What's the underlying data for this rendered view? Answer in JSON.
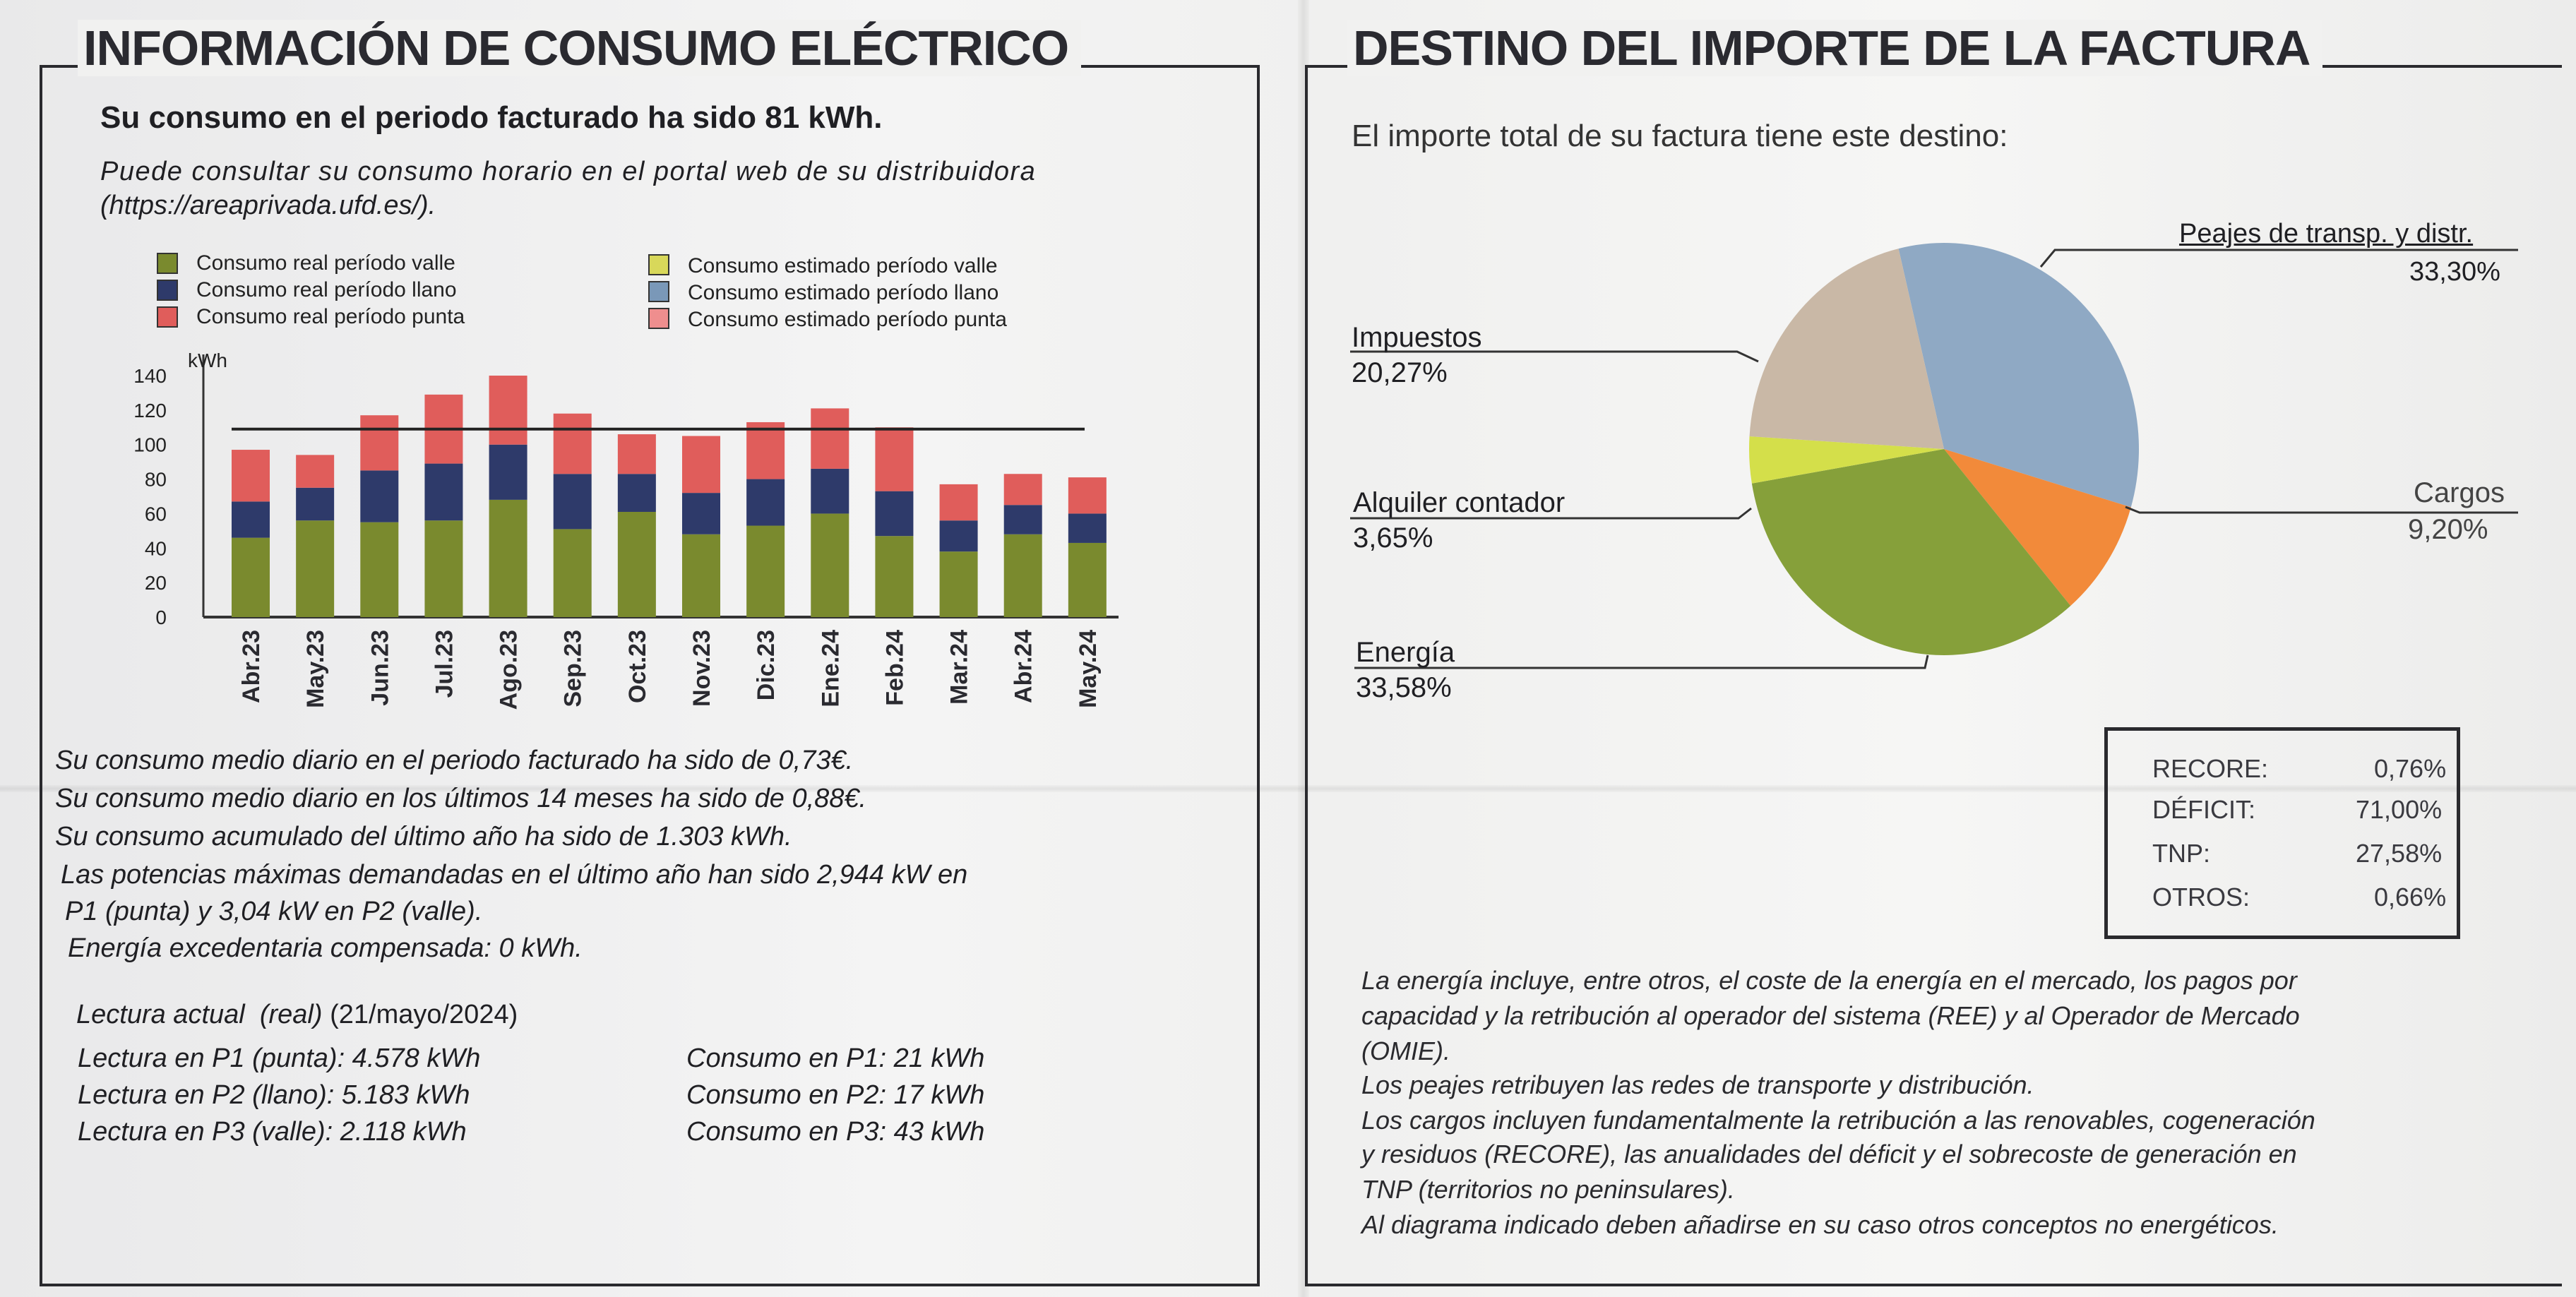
{
  "left": {
    "title": "INFORMACIÓN DE CONSUMO ELÉCTRICO",
    "subtitle": "Su consumo en el periodo facturado ha sido 81 kWh.",
    "portal_line1": "Puede consultar su consumo horario en el portal web de su distribuidora",
    "portal_line2": "(https://areaprivada.ufd.es/).",
    "stats": [
      "Su consumo medio diario en el periodo facturado ha sido de 0,73€.",
      "Su consumo medio diario en los últimos 14 meses ha sido de 0,88€.",
      "Su consumo acumulado del último año ha sido de 1.303 kWh.",
      "Las potencias máximas demandadas en el último año han sido 2,944 kW en",
      "P1 (punta) y 3,04 kW en P2 (valle).",
      "Energía excedentaria compensada: 0 kWh."
    ],
    "reading_title": "Lectura actual",
    "reading_type": "(real)",
    "reading_date": "(21/mayo/2024)",
    "readings": [
      "Lectura en P1 (punta): 4.578 kWh",
      "Lectura en P2 (llano): 5.183 kWh",
      "Lectura en P3 (valle): 2.118 kWh"
    ],
    "consumptions": [
      "Consumo en P1: 21 kWh",
      "Consumo en P2: 17 kWh",
      "Consumo en P3: 43 kWh"
    ]
  },
  "right": {
    "title": "DESTINO DEL IMPORTE DE LA FACTURA",
    "intro": "El importe total de su factura tiene este destino:",
    "pie_labels": {
      "peajes": {
        "name": "Peajes de transp. y distr.",
        "pct": "33,30%"
      },
      "impuestos": {
        "name": "Impuestos",
        "pct": "20,27%"
      },
      "alquiler": {
        "name": "Alquiler contador",
        "pct": "3,65%"
      },
      "energia": {
        "name": "Energía",
        "pct": "33,58%"
      },
      "cargos": {
        "name": "Cargos",
        "pct": "9,20%"
      }
    },
    "breakdown": [
      {
        "label": "RECORE:",
        "value": "0,76%"
      },
      {
        "label": "DÉFICIT:",
        "value": "71,00%"
      },
      {
        "label": "TNP:",
        "value": "27,58%"
      },
      {
        "label": "OTROS:",
        "value": "0,66%"
      }
    ],
    "notes": [
      "La energía incluye, entre otros, el coste de la energía en el mercado, los pagos por",
      "capacidad y la retribución al operador del sistema (REE) y al Operador de Mercado",
      "(OMIE).",
      "Los peajes retribuyen las redes de transporte y distribución.",
      "Los cargos incluyen fundamentalmente la retribución a las renovables, cogeneración",
      "y residuos (RECORE), las anualidades del déficit y el sobrecoste de generación en",
      "TNP (territorios no peninsulares).",
      "Al diagrama indicado deben añadirse en su caso otros conceptos no energéticos."
    ]
  },
  "chart_data": [
    {
      "type": "bar",
      "stacked": true,
      "ylabel": "kWh",
      "ylim": [
        0,
        140
      ],
      "yticks": [
        0,
        20,
        40,
        60,
        80,
        100,
        120,
        140
      ],
      "categories": [
        "Abr.23",
        "May.23",
        "Jun.23",
        "Jul.23",
        "Ago.23",
        "Sep.23",
        "Oct.23",
        "Nov.23",
        "Dic.23",
        "Ene.24",
        "Feb.24",
        "Mar.24",
        "Abr.24",
        "May.24"
      ],
      "series": [
        {
          "name": "Consumo real período valle",
          "color": "#7a8a2e",
          "values": [
            46,
            56,
            55,
            56,
            68,
            51,
            61,
            48,
            53,
            60,
            47,
            38,
            48,
            43
          ]
        },
        {
          "name": "Consumo real período llano",
          "color": "#2e3a6a",
          "values": [
            21,
            19,
            30,
            33,
            32,
            32,
            22,
            24,
            27,
            26,
            26,
            18,
            17,
            17
          ]
        },
        {
          "name": "Consumo real período punta",
          "color": "#e05d5b",
          "values": [
            30,
            19,
            32,
            40,
            40,
            35,
            23,
            33,
            33,
            35,
            37,
            21,
            18,
            21
          ]
        }
      ],
      "legend_extra": [
        {
          "name": "Consumo estimado período valle",
          "color": "#d8d85a"
        },
        {
          "name": "Consumo estimado período llano",
          "color": "#7a98b8"
        },
        {
          "name": "Consumo estimado período punta",
          "color": "#ef8e8e"
        }
      ],
      "reference_line": 109
    },
    {
      "type": "pie",
      "slices": [
        {
          "key": "peajes",
          "label": "Peajes de transp. y distr.",
          "value": 33.3,
          "color": "#8fa9c4"
        },
        {
          "key": "cargos",
          "label": "Cargos",
          "value": 9.2,
          "color": "#f28a3a"
        },
        {
          "key": "energia",
          "label": "Energía",
          "value": 33.58,
          "color": "#86a03a"
        },
        {
          "key": "alquiler",
          "label": "Alquiler contador",
          "value": 3.65,
          "color": "#d4df4a"
        },
        {
          "key": "impuestos",
          "label": "Impuestos",
          "value": 20.27,
          "color": "#c9b8a6"
        }
      ]
    }
  ]
}
